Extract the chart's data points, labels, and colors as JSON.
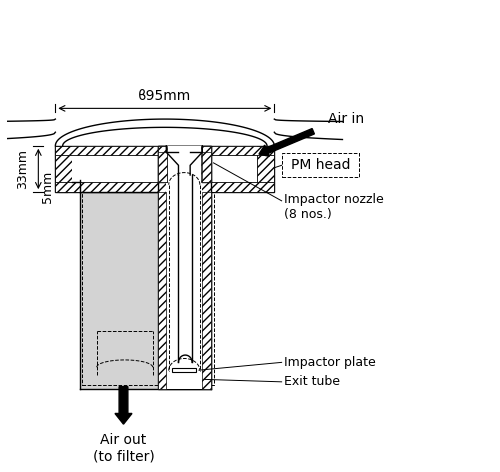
{
  "bg_color": "#ffffff",
  "line_color": "#000000",
  "light_gray": "#d3d3d3",
  "annotations": {
    "phi_label": "ϐ95mm",
    "pm_head": "PM head",
    "air_in": "Air in",
    "impactor_nozzle": "Impactor nozzle\n(8 nos.)",
    "impactor_plate": "Impactor plate",
    "exit_tube": "Exit tube",
    "air_out": "Air out\n(to filter)",
    "dim_33mm": "33mm",
    "dim_5mm": "5mm"
  },
  "figsize": [
    5.0,
    4.72
  ],
  "dpi": 100
}
